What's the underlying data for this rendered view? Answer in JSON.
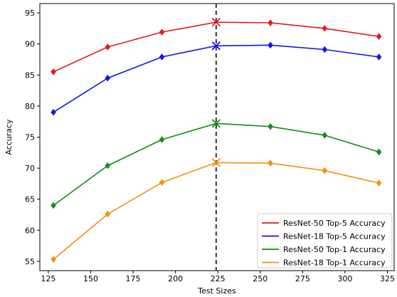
{
  "chart_data": {
    "type": "line",
    "xlabel": "Test Sizes",
    "ylabel": "Accuracy",
    "xlim": [
      120,
      329
    ],
    "ylim": [
      53.5,
      96.5
    ],
    "xticks": [
      125,
      150,
      175,
      200,
      225,
      250,
      275,
      300,
      325
    ],
    "yticks": [
      55,
      60,
      65,
      70,
      75,
      80,
      85,
      90,
      95
    ],
    "x": [
      128,
      160,
      192,
      224,
      256,
      288,
      320
    ],
    "vline": 224,
    "grid": false,
    "legend_position": "lower-right",
    "series": [
      {
        "name": "ResNet-50 Top-5 Accuracy",
        "color": "#e31a1c",
        "values": [
          85.5,
          89.5,
          91.9,
          93.5,
          93.4,
          92.5,
          91.2
        ]
      },
      {
        "name": "ResNet-18 Top-5 Accuracy",
        "color": "#1515e6",
        "values": [
          79.0,
          84.5,
          87.9,
          89.7,
          89.8,
          89.1,
          87.9
        ]
      },
      {
        "name": "ResNet-50 Top-1 Accuracy",
        "color": "#1a8a1a",
        "values": [
          64.0,
          70.4,
          74.6,
          77.2,
          76.7,
          75.3,
          72.6
        ]
      },
      {
        "name": "ResNet-18 Top-1 Accuracy",
        "color": "#f5900f",
        "values": [
          55.3,
          62.6,
          67.7,
          70.9,
          70.8,
          69.6,
          67.6
        ]
      }
    ]
  }
}
